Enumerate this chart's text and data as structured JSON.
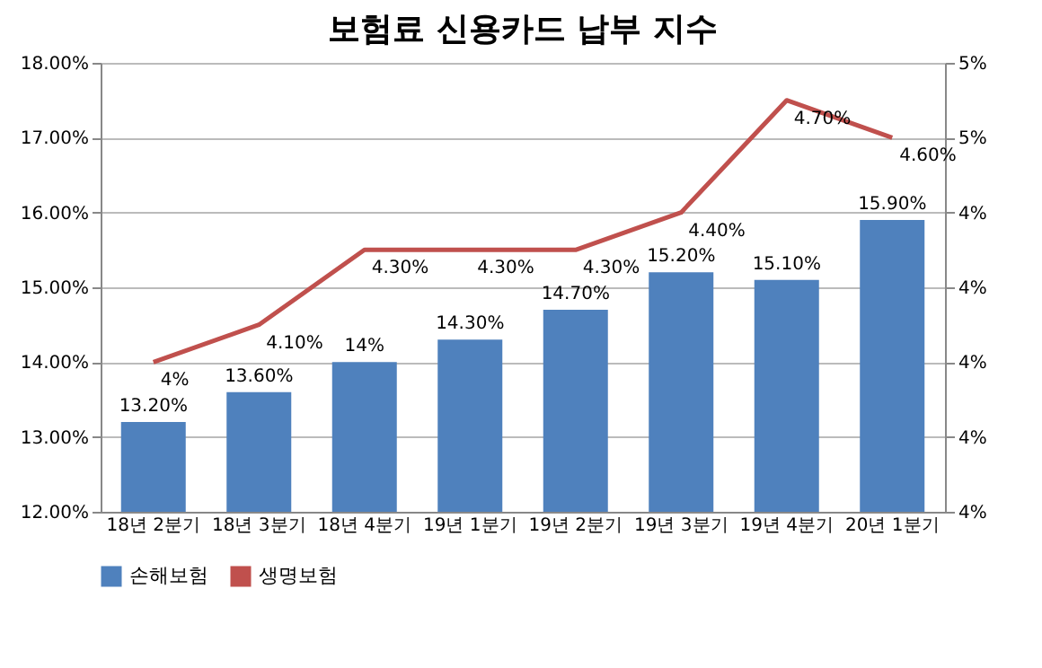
{
  "chart_data": {
    "type": "bar",
    "title": "보험료 신용카드 납부 지수",
    "categories": [
      "18년 2분기",
      "18년 3분기",
      "18년 4분기",
      "19년 1분기",
      "19년 2분기",
      "19년 3분기",
      "19년 4분기",
      "20년 1분기"
    ],
    "series": [
      {
        "name": "손해보험",
        "color": "#4f81bd",
        "values": [
          13.2,
          13.6,
          14.0,
          14.3,
          14.7,
          15.2,
          15.1,
          15.9
        ],
        "value_labels": [
          "13.20%",
          "13.60%",
          "14%",
          "14.30%",
          "14.70%",
          "15.20%",
          "15.10%",
          "15.90%"
        ]
      },
      {
        "name": "생명보험",
        "type": "line",
        "axis": "y2",
        "color": "#c0504d",
        "values": [
          4.0,
          4.1,
          4.3,
          4.3,
          4.3,
          4.4,
          4.7,
          4.6
        ],
        "value_labels": [
          "4%",
          "4.10%",
          "4.30%",
          "4.30%",
          "4.30%",
          "4.40%",
          "4.70%",
          "4.60%"
        ]
      }
    ],
    "ylim": [
      12,
      18
    ],
    "yticks": [
      {
        "value": 12,
        "label": "12.00%"
      },
      {
        "value": 13,
        "label": "13.00%"
      },
      {
        "value": 14,
        "label": "14.00%"
      },
      {
        "value": 15,
        "label": "15.00%"
      },
      {
        "value": 16,
        "label": "16.00%"
      },
      {
        "value": 17,
        "label": "17.00%"
      },
      {
        "value": 18,
        "label": "18.00%"
      }
    ],
    "y2lim": [
      3.6,
      4.8
    ],
    "y2ticks": [
      {
        "value": 3.6,
        "label": "4%"
      },
      {
        "value": 3.8,
        "label": "4%"
      },
      {
        "value": 4.0,
        "label": "4%"
      },
      {
        "value": 4.2,
        "label": "4%"
      },
      {
        "value": 4.4,
        "label": "4%"
      },
      {
        "value": 4.6,
        "label": "5%"
      },
      {
        "value": 4.8,
        "label": "5%"
      }
    ],
    "grid": "y",
    "legend": "bottom",
    "marker": "none",
    "line_style": "solid"
  }
}
